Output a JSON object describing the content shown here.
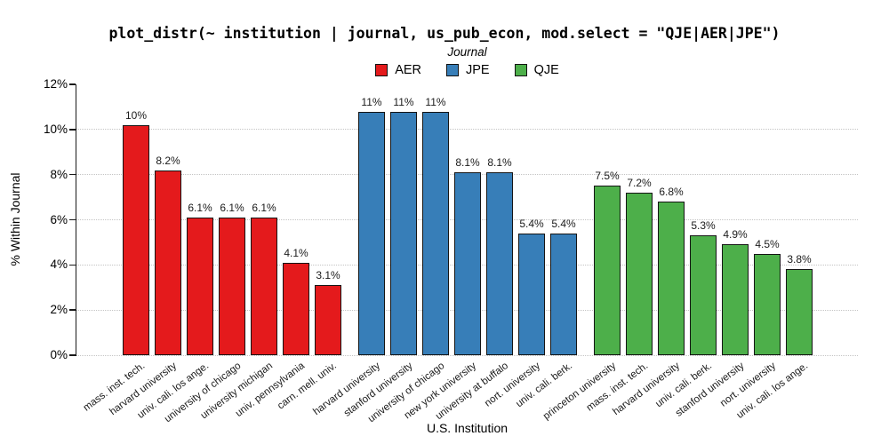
{
  "chart_data": {
    "type": "bar",
    "title": "plot_distr(~ institution | journal, us_pub_econ, mod.select = \"QJE|AER|JPE\")",
    "xlabel": "U.S. Institution",
    "ylabel": "% Within Journal",
    "ylim": [
      0,
      12
    ],
    "ytick_labels": [
      "0%",
      "2%",
      "4%",
      "6%",
      "8%",
      "10%",
      "12%"
    ],
    "grid": "horizontal dotted gridlines at each 2% tick, none at 12%",
    "legend_position": "top-center",
    "legend": {
      "title": "Journal",
      "entries": [
        {
          "label": "AER",
          "color": "#E41A1C"
        },
        {
          "label": "JPE",
          "color": "#377EB8"
        },
        {
          "label": "QJE",
          "color": "#4DAF4A"
        }
      ]
    },
    "series": [
      {
        "name": "AER",
        "color": "#E41A1C",
        "bars": [
          {
            "institution": "mass. inst. tech.",
            "value": 10.2,
            "label": "10%"
          },
          {
            "institution": "harvard university",
            "value": 8.2,
            "label": "8.2%"
          },
          {
            "institution": "univ. cali. los ange.",
            "value": 6.1,
            "label": "6.1%"
          },
          {
            "institution": "university of chicago",
            "value": 6.1,
            "label": "6.1%"
          },
          {
            "institution": "university michigan",
            "value": 6.1,
            "label": "6.1%"
          },
          {
            "institution": "univ. pennsylvania",
            "value": 4.1,
            "label": "4.1%"
          },
          {
            "institution": "carn. mell. univ.",
            "value": 3.1,
            "label": "3.1%"
          }
        ]
      },
      {
        "name": "JPE",
        "color": "#377EB8",
        "bars": [
          {
            "institution": "harvard university",
            "value": 10.8,
            "label": "11%"
          },
          {
            "institution": "stanford university",
            "value": 10.8,
            "label": "11%"
          },
          {
            "institution": "university of chicago",
            "value": 10.8,
            "label": "11%"
          },
          {
            "institution": "new york university",
            "value": 8.1,
            "label": "8.1%"
          },
          {
            "institution": "university at buffalo",
            "value": 8.1,
            "label": "8.1%"
          },
          {
            "institution": "nort. university",
            "value": 5.4,
            "label": "5.4%"
          },
          {
            "institution": "univ. cali. berk.",
            "value": 5.4,
            "label": "5.4%"
          }
        ]
      },
      {
        "name": "QJE",
        "color": "#4DAF4A",
        "bars": [
          {
            "institution": "princeton university",
            "value": 7.5,
            "label": "7.5%"
          },
          {
            "institution": "mass. inst. tech.",
            "value": 7.2,
            "label": "7.2%"
          },
          {
            "institution": "harvard university",
            "value": 6.8,
            "label": "6.8%"
          },
          {
            "institution": "univ. cali. berk.",
            "value": 5.3,
            "label": "5.3%"
          },
          {
            "institution": "stanford university",
            "value": 4.9,
            "label": "4.9%"
          },
          {
            "institution": "nort. university",
            "value": 4.5,
            "label": "4.5%"
          },
          {
            "institution": "univ. cali. los ange.",
            "value": 3.8,
            "label": "3.8%"
          }
        ]
      }
    ]
  }
}
